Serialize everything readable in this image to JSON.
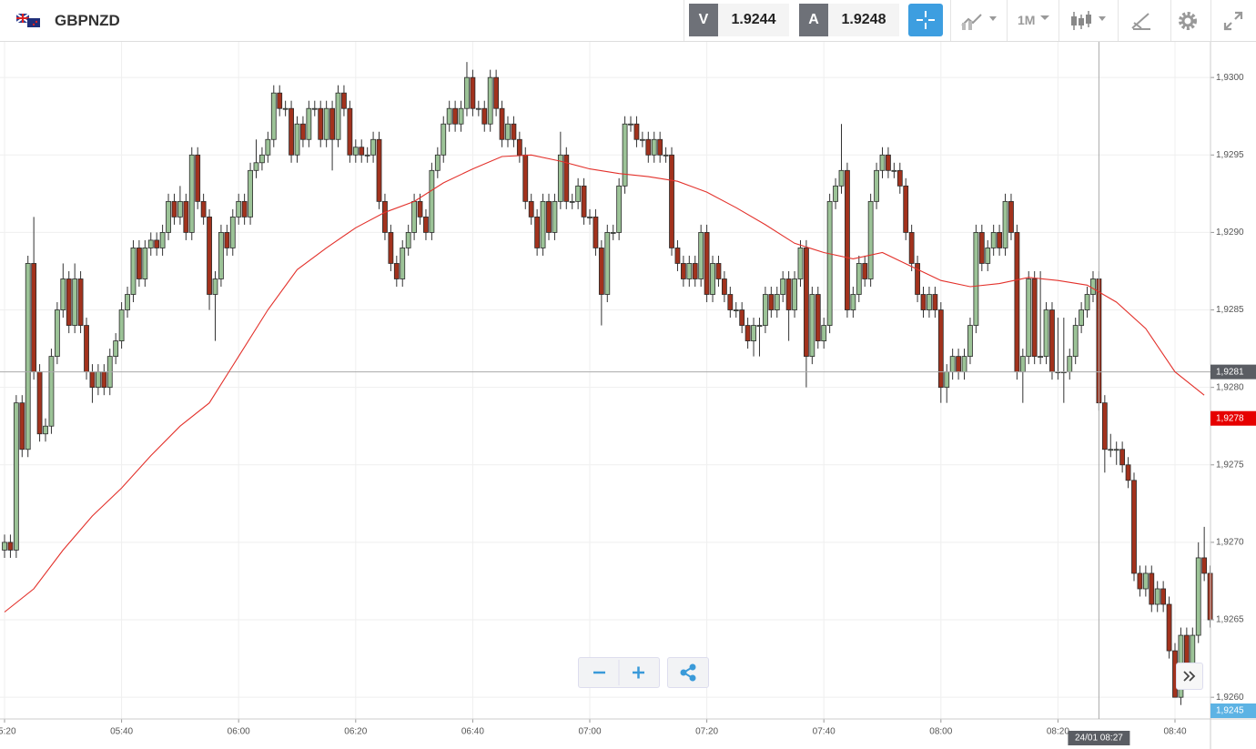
{
  "toolbar": {
    "symbol": "GBPNZD",
    "sell_label": "V",
    "sell_price": "1.9244",
    "buy_label": "A",
    "buy_price": "1.9248",
    "timeframe": "1M"
  },
  "chart_data": {
    "type": "candlestick",
    "x": [
      "05:20",
      "05:21",
      "05:22",
      "05:23",
      "05:24",
      "05:25",
      "05:26",
      "05:27",
      "05:28",
      "05:29",
      "05:30",
      "05:31",
      "05:32",
      "05:33",
      "05:34",
      "05:35",
      "05:36",
      "05:37",
      "05:38",
      "05:39",
      "05:40",
      "05:41",
      "05:42",
      "05:43",
      "05:44",
      "05:45",
      "05:46",
      "05:47",
      "05:48",
      "05:49",
      "05:50",
      "05:51",
      "05:52",
      "05:53",
      "05:54",
      "05:55",
      "05:56",
      "05:57",
      "05:58",
      "05:59",
      "06:00",
      "06:01",
      "06:02",
      "06:03",
      "06:04",
      "06:05",
      "06:06",
      "06:07",
      "06:08",
      "06:09",
      "06:10",
      "06:11",
      "06:12",
      "06:13",
      "06:14",
      "06:15",
      "06:16",
      "06:17",
      "06:18",
      "06:19",
      "06:20",
      "06:21",
      "06:22",
      "06:23",
      "06:24",
      "06:25",
      "06:26",
      "06:27",
      "06:28",
      "06:29",
      "06:30",
      "06:31",
      "06:32",
      "06:33",
      "06:34",
      "06:35",
      "06:36",
      "06:37",
      "06:38",
      "06:39",
      "06:40",
      "06:41",
      "06:42",
      "06:43",
      "06:44",
      "06:45",
      "06:46",
      "06:47",
      "06:48",
      "06:49",
      "06:50",
      "06:51",
      "06:52",
      "06:53",
      "06:54",
      "06:55",
      "06:56",
      "06:57",
      "06:58",
      "06:59",
      "07:00",
      "07:01",
      "07:02",
      "07:03",
      "07:04",
      "07:05",
      "07:06",
      "07:07",
      "07:08",
      "07:09",
      "07:10",
      "07:11",
      "07:12",
      "07:13",
      "07:14",
      "07:15",
      "07:16",
      "07:17",
      "07:18",
      "07:19",
      "07:20",
      "07:21",
      "07:22",
      "07:23",
      "07:24",
      "07:25",
      "07:26",
      "07:27",
      "07:28",
      "07:29",
      "07:30",
      "07:31",
      "07:32",
      "07:33",
      "07:34",
      "07:35",
      "07:36",
      "07:37",
      "07:38",
      "07:39",
      "07:40",
      "07:41",
      "07:42",
      "07:43",
      "07:44",
      "07:45",
      "07:46",
      "07:47",
      "07:48",
      "07:49",
      "07:50",
      "07:51",
      "07:52",
      "07:53",
      "07:54",
      "07:55",
      "07:56",
      "07:57",
      "07:58",
      "07:59",
      "08:00",
      "08:01",
      "08:02",
      "08:03",
      "08:04",
      "08:05",
      "08:06",
      "08:07",
      "08:08",
      "08:09",
      "08:10",
      "08:11",
      "08:12",
      "08:13",
      "08:14",
      "08:15",
      "08:16",
      "08:17",
      "08:18",
      "08:19",
      "08:20",
      "08:21",
      "08:22",
      "08:23",
      "08:24",
      "08:25",
      "08:26",
      "08:27",
      "08:28",
      "08:29",
      "08:30",
      "08:31",
      "08:32",
      "08:33",
      "08:34",
      "08:35",
      "08:36",
      "08:37",
      "08:38",
      "08:39",
      "08:40",
      "08:41",
      "08:42",
      "08:43",
      "08:44",
      "08:45",
      "08:46"
    ],
    "open": [
      1.92695,
      1.927,
      1.92695,
      1.9279,
      1.9276,
      1.9288,
      1.9281,
      1.9277,
      1.92775,
      1.9282,
      1.9285,
      1.9287,
      1.9284,
      1.9287,
      1.9284,
      1.9281,
      1.928,
      1.9281,
      1.928,
      1.9282,
      1.9283,
      1.9285,
      1.9286,
      1.9289,
      1.9287,
      1.9289,
      1.92895,
      1.9289,
      1.929,
      1.9292,
      1.9291,
      1.9292,
      1.929,
      1.9295,
      1.9292,
      1.9291,
      1.9286,
      1.9287,
      1.929,
      1.9289,
      1.9291,
      1.9292,
      1.9291,
      1.9294,
      1.92945,
      1.9295,
      1.9296,
      1.9299,
      1.9298,
      1.9298,
      1.9295,
      1.9297,
      1.9296,
      1.9298,
      1.9298,
      1.9296,
      1.9298,
      1.9296,
      1.9299,
      1.9298,
      1.9295,
      1.92955,
      1.9295,
      1.9295,
      1.9296,
      1.9292,
      1.929,
      1.9288,
      1.9287,
      1.9289,
      1.929,
      1.9292,
      1.9291,
      1.929,
      1.9294,
      1.9295,
      1.9297,
      1.9298,
      1.9297,
      1.9298,
      1.93,
      1.9298,
      1.9298,
      1.9297,
      1.93,
      1.9298,
      1.9296,
      1.9297,
      1.9296,
      1.9295,
      1.9292,
      1.9291,
      1.9289,
      1.9292,
      1.929,
      1.9292,
      1.9295,
      1.9292,
      1.9292,
      1.9293,
      1.9291,
      1.9291,
      1.9289,
      1.9286,
      1.929,
      1.929,
      1.9293,
      1.9297,
      1.9297,
      1.9296,
      1.9296,
      1.9295,
      1.9296,
      1.9295,
      1.9295,
      1.9289,
      1.9288,
      1.9287,
      1.9288,
      1.9287,
      1.929,
      1.9286,
      1.9288,
      1.9287,
      1.9286,
      1.9285,
      1.9285,
      1.9284,
      1.9283,
      1.9284,
      1.9284,
      1.9286,
      1.9285,
      1.9286,
      1.9287,
      1.9285,
      1.9287,
      1.9289,
      1.9282,
      1.9286,
      1.9283,
      1.9284,
      1.9292,
      1.9293,
      1.9294,
      1.9285,
      1.9286,
      1.9288,
      1.9287,
      1.9292,
      1.9294,
      1.9295,
      1.9294,
      1.9294,
      1.9293,
      1.929,
      1.9288,
      1.9286,
      1.9285,
      1.9286,
      1.9285,
      1.928,
      1.9281,
      1.9282,
      1.9281,
      1.9282,
      1.9284,
      1.929,
      1.9288,
      1.9289,
      1.929,
      1.9289,
      1.9292,
      1.929,
      1.9281,
      1.9282,
      1.9287,
      1.9282,
      1.9282,
      1.9285,
      1.9281,
      1.9281,
      1.9281,
      1.9282,
      1.9284,
      1.9285,
      1.9286,
      1.9287,
      1.9279,
      1.9276,
      1.9276,
      1.9276,
      1.9275,
      1.9274,
      1.9268,
      1.9267,
      1.9268,
      1.9266,
      1.9267,
      1.9266,
      1.9263,
      1.926,
      1.9264,
      1.9262,
      1.9264,
      1.9269,
      1.9268
    ],
    "high": [
      1.92705,
      1.92705,
      1.92795,
      1.92795,
      1.92885,
      1.9291,
      1.92815,
      1.9278,
      1.92825,
      1.92855,
      1.9288,
      1.92875,
      1.9288,
      1.92875,
      1.92845,
      1.92815,
      1.92815,
      1.92815,
      1.92825,
      1.92835,
      1.92855,
      1.92865,
      1.92895,
      1.92895,
      1.92895,
      1.929,
      1.929,
      1.92905,
      1.92925,
      1.92925,
      1.9293,
      1.92925,
      1.92955,
      1.92955,
      1.92925,
      1.92915,
      1.92875,
      1.92905,
      1.92905,
      1.92915,
      1.92925,
      1.92925,
      1.92945,
      1.9296,
      1.92955,
      1.92965,
      1.92995,
      1.92995,
      1.92985,
      1.92985,
      1.92975,
      1.92975,
      1.92985,
      1.92985,
      1.92985,
      1.92985,
      1.92985,
      1.92995,
      1.92995,
      1.92985,
      1.9296,
      1.9296,
      1.92955,
      1.92965,
      1.92965,
      1.92925,
      1.92905,
      1.92885,
      1.92895,
      1.92905,
      1.92925,
      1.92925,
      1.92915,
      1.92945,
      1.92955,
      1.92975,
      1.92985,
      1.92985,
      1.92985,
      1.9301,
      1.93005,
      1.92985,
      1.92985,
      1.93005,
      1.93005,
      1.92985,
      1.92975,
      1.92975,
      1.92965,
      1.92955,
      1.92925,
      1.92915,
      1.92925,
      1.92925,
      1.92925,
      1.92965,
      1.92955,
      1.92925,
      1.92935,
      1.92935,
      1.92915,
      1.92915,
      1.92895,
      1.92905,
      1.92905,
      1.92935,
      1.92975,
      1.92975,
      1.92975,
      1.92965,
      1.92965,
      1.92965,
      1.92965,
      1.92955,
      1.92955,
      1.92895,
      1.92885,
      1.92885,
      1.92885,
      1.92905,
      1.92905,
      1.92885,
      1.92885,
      1.92875,
      1.92865,
      1.92855,
      1.92855,
      1.92845,
      1.92845,
      1.92845,
      1.92865,
      1.92865,
      1.92865,
      1.92875,
      1.92875,
      1.92875,
      1.92895,
      1.92895,
      1.92865,
      1.92865,
      1.92845,
      1.92925,
      1.92935,
      1.9297,
      1.92945,
      1.92865,
      1.92885,
      1.92885,
      1.92925,
      1.92945,
      1.92955,
      1.92955,
      1.92945,
      1.92945,
      1.92935,
      1.92905,
      1.92885,
      1.92865,
      1.92865,
      1.92865,
      1.92855,
      1.92815,
      1.92825,
      1.92825,
      1.92825,
      1.92845,
      1.92905,
      1.92905,
      1.92895,
      1.92905,
      1.92905,
      1.92925,
      1.92925,
      1.92905,
      1.92825,
      1.92875,
      1.92875,
      1.92875,
      1.92855,
      1.92855,
      1.92845,
      1.92845,
      1.92825,
      1.92845,
      1.92855,
      1.92865,
      1.92875,
      1.92875,
      1.92795,
      1.9277,
      1.92765,
      1.92765,
      1.92755,
      1.92745,
      1.92685,
      1.92685,
      1.92685,
      1.92675,
      1.92675,
      1.92665,
      1.92635,
      1.92645,
      1.92645,
      1.92645,
      1.927,
      1.9271,
      1.92685
    ],
    "low": [
      1.9269,
      1.9269,
      1.9269,
      1.92755,
      1.92755,
      1.92805,
      1.92765,
      1.92765,
      1.9277,
      1.92815,
      1.92845,
      1.92835,
      1.92835,
      1.92835,
      1.92805,
      1.9279,
      1.92795,
      1.92795,
      1.92795,
      1.92815,
      1.92825,
      1.92845,
      1.92855,
      1.92865,
      1.92865,
      1.92885,
      1.92885,
      1.92885,
      1.92895,
      1.92905,
      1.92905,
      1.92895,
      1.92895,
      1.92915,
      1.92905,
      1.9285,
      1.9283,
      1.92865,
      1.92885,
      1.92885,
      1.92905,
      1.92905,
      1.92905,
      1.92935,
      1.9294,
      1.92945,
      1.92955,
      1.92975,
      1.92975,
      1.92945,
      1.92945,
      1.92955,
      1.92955,
      1.92975,
      1.92955,
      1.92955,
      1.9294,
      1.92955,
      1.92975,
      1.92945,
      1.92945,
      1.92945,
      1.92945,
      1.92945,
      1.92915,
      1.92895,
      1.92875,
      1.92865,
      1.92865,
      1.92885,
      1.92895,
      1.92905,
      1.92895,
      1.92895,
      1.92935,
      1.92945,
      1.92965,
      1.92965,
      1.92965,
      1.92975,
      1.92975,
      1.92975,
      1.92965,
      1.92965,
      1.92975,
      1.92955,
      1.92955,
      1.92955,
      1.92945,
      1.92915,
      1.92905,
      1.92885,
      1.92885,
      1.92895,
      1.92895,
      1.92915,
      1.92915,
      1.92915,
      1.92915,
      1.92905,
      1.92905,
      1.92885,
      1.9284,
      1.92855,
      1.92895,
      1.92895,
      1.92925,
      1.92965,
      1.92955,
      1.92955,
      1.92945,
      1.92945,
      1.92945,
      1.92945,
      1.92885,
      1.92875,
      1.92865,
      1.92865,
      1.92865,
      1.92865,
      1.92855,
      1.92855,
      1.92865,
      1.92855,
      1.92845,
      1.92845,
      1.92835,
      1.92825,
      1.9282,
      1.9282,
      1.92835,
      1.92845,
      1.92845,
      1.92855,
      1.9283,
      1.92845,
      1.92865,
      1.928,
      1.92815,
      1.92825,
      1.92825,
      1.92835,
      1.92915,
      1.92925,
      1.92845,
      1.92845,
      1.92855,
      1.92865,
      1.92865,
      1.92915,
      1.92935,
      1.92935,
      1.92935,
      1.92925,
      1.92895,
      1.92875,
      1.92855,
      1.92845,
      1.92845,
      1.92845,
      1.9279,
      1.9279,
      1.92805,
      1.92805,
      1.92805,
      1.92815,
      1.92835,
      1.92875,
      1.92875,
      1.92885,
      1.92885,
      1.92885,
      1.92895,
      1.92805,
      1.9279,
      1.92815,
      1.92815,
      1.92815,
      1.92815,
      1.92805,
      1.92805,
      1.9279,
      1.92805,
      1.92815,
      1.92835,
      1.92845,
      1.92855,
      1.92785,
      1.92745,
      1.92755,
      1.9275,
      1.92745,
      1.92735,
      1.92675,
      1.92665,
      1.92665,
      1.92655,
      1.92655,
      1.92655,
      1.92625,
      1.926,
      1.92595,
      1.92615,
      1.92615,
      1.92635,
      1.92675,
      1.92645
    ],
    "close": [
      1.927,
      1.92695,
      1.9279,
      1.9276,
      1.9288,
      1.9281,
      1.9277,
      1.92775,
      1.9282,
      1.9285,
      1.9287,
      1.9284,
      1.9287,
      1.9284,
      1.9281,
      1.928,
      1.9281,
      1.928,
      1.9282,
      1.9283,
      1.9285,
      1.9286,
      1.9289,
      1.9287,
      1.9289,
      1.92895,
      1.9289,
      1.929,
      1.9292,
      1.9291,
      1.9292,
      1.929,
      1.9295,
      1.9292,
      1.9291,
      1.9286,
      1.9287,
      1.929,
      1.9289,
      1.9291,
      1.9292,
      1.9291,
      1.9294,
      1.92945,
      1.9295,
      1.9296,
      1.9299,
      1.9298,
      1.9298,
      1.9295,
      1.9297,
      1.9296,
      1.9298,
      1.9298,
      1.9296,
      1.9298,
      1.9296,
      1.9299,
      1.9298,
      1.9295,
      1.92955,
      1.9295,
      1.9295,
      1.9296,
      1.9292,
      1.929,
      1.9288,
      1.9287,
      1.9289,
      1.929,
      1.9292,
      1.9291,
      1.929,
      1.9294,
      1.9295,
      1.9297,
      1.9298,
      1.9297,
      1.9298,
      1.93,
      1.9298,
      1.9298,
      1.9297,
      1.93,
      1.9298,
      1.9296,
      1.9297,
      1.9296,
      1.9295,
      1.9292,
      1.9291,
      1.9289,
      1.9292,
      1.929,
      1.9292,
      1.9295,
      1.9292,
      1.9292,
      1.9293,
      1.9291,
      1.9291,
      1.9289,
      1.9286,
      1.929,
      1.929,
      1.9293,
      1.9297,
      1.9297,
      1.9296,
      1.9296,
      1.9295,
      1.9296,
      1.9295,
      1.9295,
      1.9289,
      1.9288,
      1.9287,
      1.9288,
      1.9287,
      1.929,
      1.9286,
      1.9288,
      1.9287,
      1.9286,
      1.9285,
      1.9285,
      1.9284,
      1.9283,
      1.9284,
      1.9284,
      1.9286,
      1.9285,
      1.9286,
      1.9287,
      1.9285,
      1.9287,
      1.9289,
      1.9282,
      1.9286,
      1.9283,
      1.9284,
      1.9292,
      1.9293,
      1.9294,
      1.9285,
      1.9286,
      1.9288,
      1.9287,
      1.9292,
      1.9294,
      1.9295,
      1.9294,
      1.9294,
      1.9293,
      1.929,
      1.9288,
      1.9286,
      1.9285,
      1.9286,
      1.9285,
      1.928,
      1.9281,
      1.9282,
      1.9281,
      1.9282,
      1.9284,
      1.929,
      1.9288,
      1.9289,
      1.929,
      1.9289,
      1.9292,
      1.929,
      1.9281,
      1.9282,
      1.9287,
      1.9282,
      1.9282,
      1.9285,
      1.9281,
      1.9281,
      1.9281,
      1.9282,
      1.9284,
      1.9285,
      1.9286,
      1.9287,
      1.9279,
      1.9276,
      1.9276,
      1.9276,
      1.9275,
      1.9274,
      1.9268,
      1.9267,
      1.9268,
      1.9266,
      1.9267,
      1.9266,
      1.9263,
      1.926,
      1.9264,
      1.9262,
      1.9264,
      1.9269,
      1.9268,
      1.9265
    ],
    "up_color": "#9cc397",
    "down_color": "#a2321d",
    "ylim": [
      1.92586,
      1.93023
    ],
    "yticks": [
      {
        "value": 1.926,
        "label": "1,9260"
      },
      {
        "value": 1.9265,
        "label": "1,9265"
      },
      {
        "value": 1.927,
        "label": "1,9270"
      },
      {
        "value": 1.9275,
        "label": "1,9275"
      },
      {
        "value": 1.928,
        "label": "1,9280"
      },
      {
        "value": 1.9285,
        "label": "1,9285"
      },
      {
        "value": 1.929,
        "label": "1,9290"
      },
      {
        "value": 1.9295,
        "label": "1,9295"
      },
      {
        "value": 1.93,
        "label": "1,9300"
      }
    ],
    "xticks": [
      "05:20",
      "05:40",
      "06:00",
      "06:20",
      "06:40",
      "07:00",
      "07:20",
      "07:40",
      "08:00",
      "08:20",
      "08:40"
    ],
    "grid": true,
    "ma": {
      "color": "#e3312b",
      "x": [
        "05:20",
        "05:25",
        "05:30",
        "05:35",
        "05:40",
        "05:45",
        "05:50",
        "05:55",
        "06:00",
        "06:05",
        "06:10",
        "06:15",
        "06:20",
        "06:25",
        "06:30",
        "06:35",
        "06:40",
        "06:45",
        "06:50",
        "06:55",
        "07:00",
        "07:05",
        "07:10",
        "07:15",
        "07:20",
        "07:25",
        "07:30",
        "07:35",
        "07:40",
        "07:45",
        "07:50",
        "07:55",
        "08:00",
        "08:05",
        "08:10",
        "08:15",
        "08:20",
        "08:25",
        "08:30",
        "08:35",
        "08:40",
        "08:45"
      ],
      "values": [
        1.92655,
        1.9267,
        1.92695,
        1.92717,
        1.92735,
        1.92756,
        1.92775,
        1.9279,
        1.9282,
        1.9285,
        1.92876,
        1.9289,
        1.92903,
        1.92913,
        1.9292,
        1.92932,
        1.92941,
        1.92949,
        1.9295,
        1.92946,
        1.92941,
        1.92938,
        1.92936,
        1.92933,
        1.92926,
        1.92916,
        1.92905,
        1.92893,
        1.92887,
        1.92883,
        1.92887,
        1.92878,
        1.92869,
        1.92865,
        1.92867,
        1.92871,
        1.92869,
        1.92866,
        1.92855,
        1.92838,
        1.9281,
        1.92795
      ]
    },
    "crosshair": {
      "x": "08:27",
      "x_label": "24/01 08:27",
      "y": 1.9281,
      "y_label": "1,9281"
    },
    "price_tag": {
      "value": 1.9278,
      "label": "1,9278",
      "color": "#e60000"
    },
    "bid_tag": {
      "value": 1.9245,
      "label": "1,9245",
      "color": "#5db3e4"
    }
  }
}
